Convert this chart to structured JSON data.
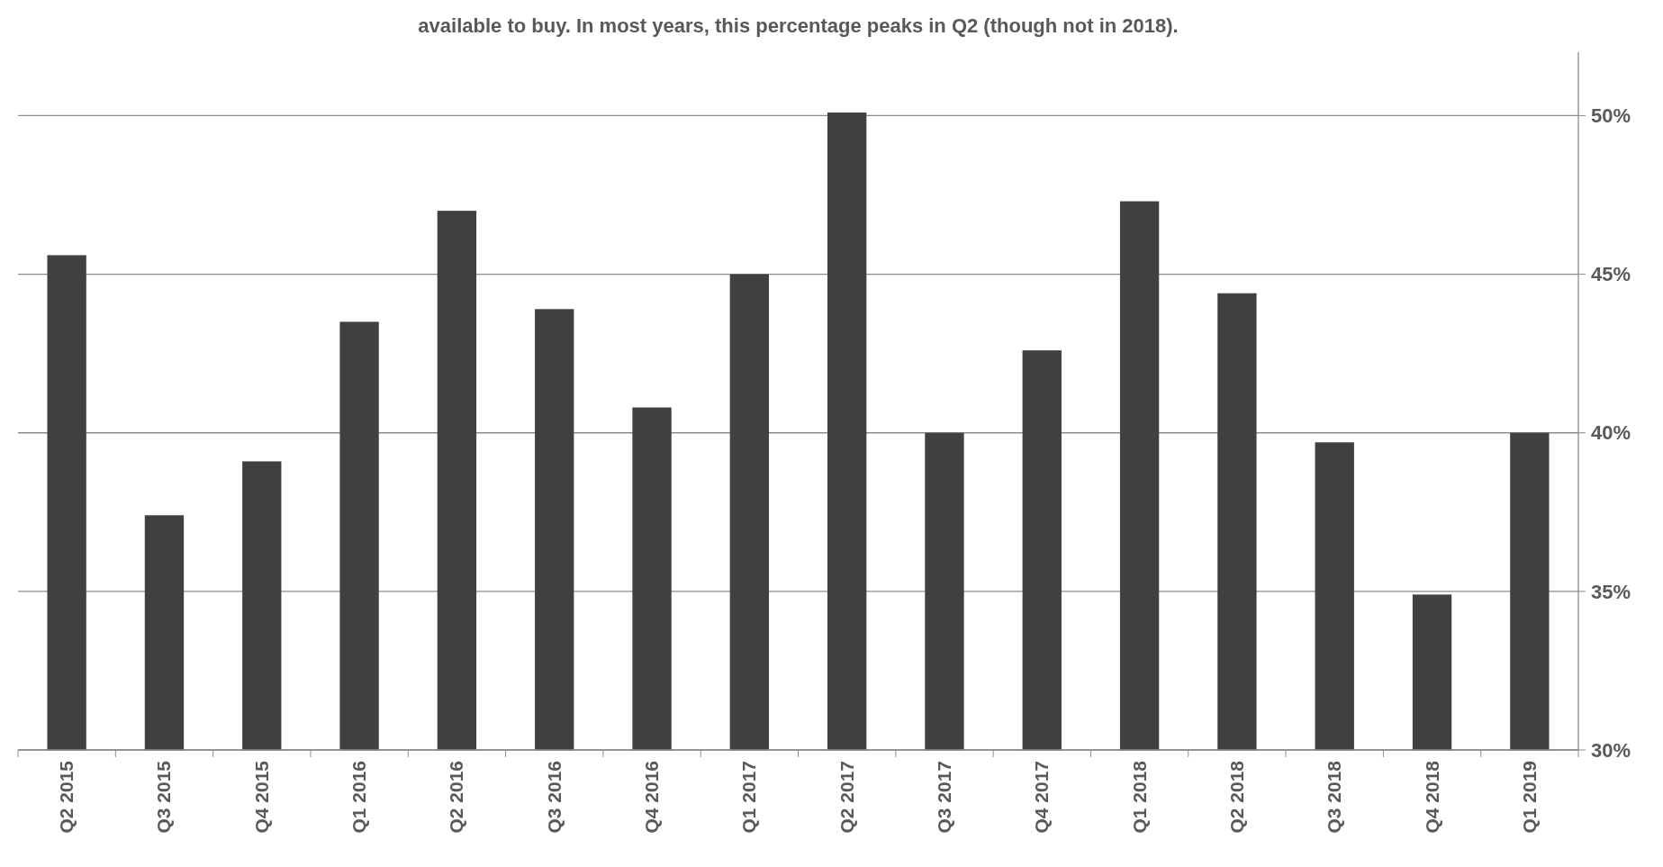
{
  "chart_data": {
    "type": "bar",
    "title": "available to buy. In most years, this percentage peaks in Q2 (though not in 2018).",
    "categories": [
      "Q2 2015",
      "Q3 2015",
      "Q4 2015",
      "Q1 2016",
      "Q2 2016",
      "Q3 2016",
      "Q4 2016",
      "Q1 2017",
      "Q2 2017",
      "Q3 2017",
      "Q4 2017",
      "Q1 2018",
      "Q2 2018",
      "Q3 2018",
      "Q4 2018",
      "Q1 2019"
    ],
    "values": [
      45.6,
      37.4,
      39.1,
      43.5,
      47.0,
      43.9,
      40.8,
      45.0,
      50.1,
      40.0,
      42.6,
      47.3,
      44.4,
      39.7,
      34.9,
      40.0
    ],
    "color": "#404040",
    "ylim": [
      30,
      52
    ],
    "yticks": [
      {
        "value": 30,
        "label": "30%"
      },
      {
        "value": 35,
        "label": "35%"
      },
      {
        "value": 40,
        "label": "40%"
      },
      {
        "value": 45,
        "label": "45%"
      },
      {
        "value": 50,
        "label": "50%"
      }
    ],
    "grid": "y"
  }
}
